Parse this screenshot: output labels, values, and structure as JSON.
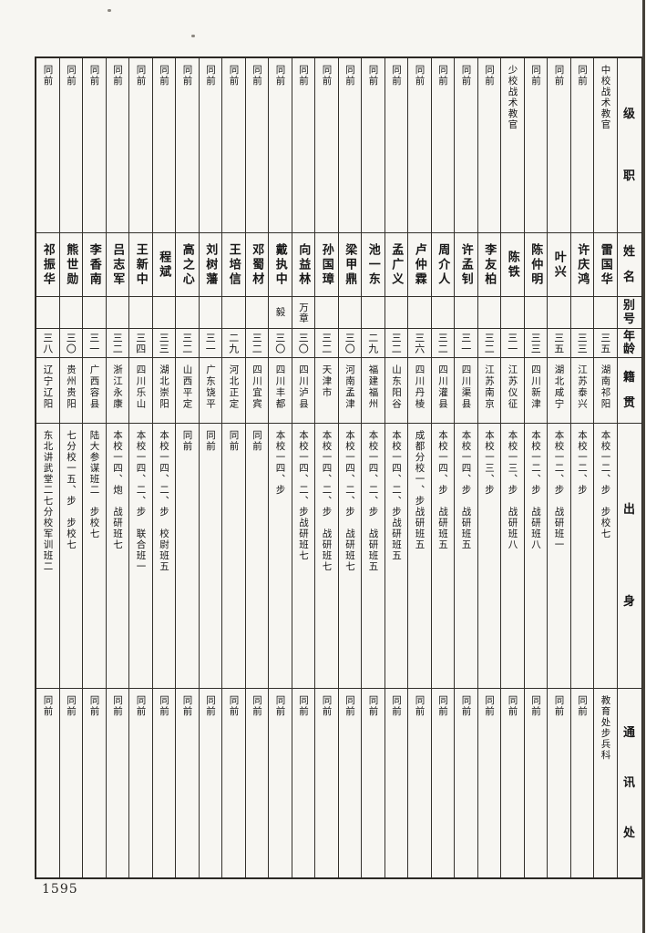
{
  "page": {
    "number": "1595"
  },
  "table": {
    "headers": {
      "rank": "级职",
      "name": "姓名",
      "alias": "别号",
      "age": "年龄",
      "origin": "籍贯",
      "background": "出身",
      "contact": "通讯处"
    },
    "columns": [
      {
        "rank": "同前",
        "name": "祁振华",
        "alias": "",
        "age": "三八",
        "origin": "辽宁辽阳",
        "background": "东北讲武堂二七分校军训班二",
        "contact": "同前"
      },
      {
        "rank": "同前",
        "name": "熊世勋",
        "alias": "",
        "age": "三〇",
        "origin": "贵州贵阳",
        "background": "七分校一五、步　步校七",
        "contact": "同前"
      },
      {
        "rank": "同前",
        "name": "李香南",
        "alias": "",
        "age": "三一",
        "origin": "广西容县",
        "background": "陆大参谋班二　步校七",
        "contact": "同前"
      },
      {
        "rank": "同前",
        "name": "吕志军",
        "alias": "",
        "age": "三二",
        "origin": "浙江永康",
        "background": "本校一四、炮　战研班七",
        "contact": "同前"
      },
      {
        "rank": "同前",
        "name": "王新中",
        "alias": "",
        "age": "三四",
        "origin": "四川乐山",
        "background": "本校一四、二、步　联合班一",
        "contact": "同前"
      },
      {
        "rank": "同前",
        "name": "程斌",
        "alias": "",
        "age": "三三",
        "origin": "湖北崇阳",
        "background": "本校一四、二、步　校尉班五",
        "contact": "同前"
      },
      {
        "rank": "同前",
        "name": "高之心",
        "alias": "",
        "age": "三二",
        "origin": "山西平定",
        "background": "同前",
        "contact": "同前"
      },
      {
        "rank": "同前",
        "name": "刘树藩",
        "alias": "",
        "age": "三一",
        "origin": "广东饶平",
        "background": "同前",
        "contact": "同前"
      },
      {
        "rank": "同前",
        "name": "王培信",
        "alias": "",
        "age": "二九",
        "origin": "河北正定",
        "background": "同前",
        "contact": "同前"
      },
      {
        "rank": "同前",
        "name": "邓蜀材",
        "alias": "",
        "age": "三二",
        "origin": "四川宜宾",
        "background": "同前",
        "contact": "同前"
      },
      {
        "rank": "同前",
        "name": "戴执中",
        "alias": "毅",
        "age": "三〇",
        "origin": "四川丰都",
        "background": "本校一四、步",
        "contact": "同前"
      },
      {
        "rank": "同前",
        "name": "向益林",
        "alias": "万章",
        "age": "三〇",
        "origin": "四川泸县",
        "background": "本校一四、二、步战研班七",
        "contact": "同前"
      },
      {
        "rank": "同前",
        "name": "孙国璋",
        "alias": "",
        "age": "三二",
        "origin": "天津市",
        "background": "本校一四、二、步　战研班七",
        "contact": "同前"
      },
      {
        "rank": "同前",
        "name": "梁甲鼎",
        "alias": "",
        "age": "三〇",
        "origin": "河南孟津",
        "background": "本校一四、二、步　战研班七",
        "contact": "同前"
      },
      {
        "rank": "同前",
        "name": "池一东",
        "alias": "",
        "age": "二九",
        "origin": "福建福州",
        "background": "本校一四、二、步　战研班五",
        "contact": "同前"
      },
      {
        "rank": "同前",
        "name": "孟广义",
        "alias": "",
        "age": "三二",
        "origin": "山东阳谷",
        "background": "本校一四、二、步战研班五",
        "contact": "同前"
      },
      {
        "rank": "同前",
        "name": "卢仲霖",
        "alias": "",
        "age": "三六",
        "origin": "四川丹棱",
        "background": "成都分校一、步战研班五",
        "contact": "同前"
      },
      {
        "rank": "同前",
        "name": "周介人",
        "alias": "",
        "age": "三二",
        "origin": "四川灌县",
        "background": "本校一四、步　战研班五",
        "contact": "同前"
      },
      {
        "rank": "同前",
        "name": "许孟钊",
        "alias": "",
        "age": "三一",
        "origin": "四川渠县",
        "background": "本校一四、步　战研班五",
        "contact": "同前"
      },
      {
        "rank": "同前",
        "name": "李友柏",
        "alias": "",
        "age": "三二",
        "origin": "江苏南京",
        "background": "本校一三、步",
        "contact": "同前"
      },
      {
        "rank": "少校战术教官",
        "name": "陈铁",
        "alias": "",
        "age": "三一",
        "origin": "江苏仪征",
        "background": "本校一三、步　战研班八",
        "contact": "同前"
      },
      {
        "rank": "同前",
        "name": "陈仲明",
        "alias": "",
        "age": "三三",
        "origin": "四川新津",
        "background": "本校一二、步　战研班八",
        "contact": "同前"
      },
      {
        "rank": "同前",
        "name": "叶兴",
        "alias": "",
        "age": "三五",
        "origin": "湖北咸宁",
        "background": "本校一二、步　战研班一",
        "contact": "同前"
      },
      {
        "rank": "同前",
        "name": "许庆鸿",
        "alias": "",
        "age": "三三",
        "origin": "江苏泰兴",
        "background": "本校一二、步",
        "contact": "同前"
      },
      {
        "rank": "中校战术教官",
        "name": "雷国华",
        "alias": "",
        "age": "三五",
        "origin": "湖南祁阳",
        "background": "本校一二、步　步校七",
        "contact": "教育处步兵科"
      }
    ]
  }
}
